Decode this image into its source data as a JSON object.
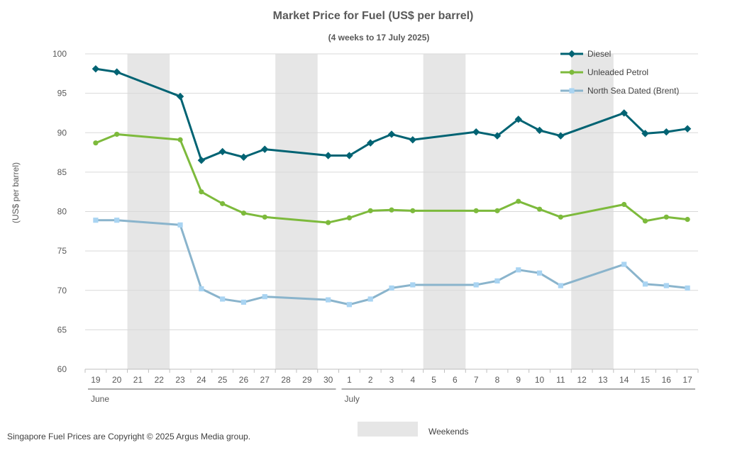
{
  "chart_data": {
    "type": "line",
    "title": "Market Price for Fuel (US$ per barrel)",
    "subtitle": "(4 weeks to 17 July 2025)",
    "ylabel": "(US$ per barrel)",
    "ylim": [
      60,
      100
    ],
    "yticks": [
      60,
      65,
      70,
      75,
      80,
      85,
      90,
      95,
      100
    ],
    "grid": true,
    "legend_position": "top-right",
    "categories": [
      "19",
      "20",
      "21",
      "22",
      "23",
      "24",
      "25",
      "26",
      "27",
      "28",
      "29",
      "30",
      "1",
      "2",
      "3",
      "4",
      "5",
      "6",
      "7",
      "8",
      "9",
      "10",
      "11",
      "12",
      "13",
      "14",
      "15",
      "16",
      "17"
    ],
    "month_groups": [
      {
        "label": "June",
        "from": 0,
        "to": 11
      },
      {
        "label": "July",
        "from": 12,
        "to": 28
      }
    ],
    "weekend_spans": [
      [
        2,
        3
      ],
      [
        9,
        10
      ],
      [
        16,
        17
      ],
      [
        23,
        24
      ]
    ],
    "series": [
      {
        "name": "Diesel",
        "color": "#006373",
        "marker": "diamond",
        "values": [
          98.1,
          97.7,
          null,
          null,
          94.6,
          86.5,
          87.6,
          86.9,
          87.9,
          null,
          null,
          87.1,
          87.1,
          88.7,
          89.8,
          89.1,
          null,
          null,
          90.1,
          89.6,
          91.7,
          90.3,
          89.6,
          null,
          null,
          92.5,
          89.9,
          90.1,
          90.5
        ]
      },
      {
        "name": "Unleaded Petrol",
        "color": "#7dba3c",
        "marker": "circle",
        "values": [
          88.7,
          89.8,
          null,
          null,
          89.1,
          82.5,
          81.0,
          79.8,
          79.3,
          null,
          null,
          78.6,
          79.2,
          80.1,
          80.2,
          80.1,
          null,
          null,
          80.1,
          80.1,
          81.3,
          80.3,
          79.3,
          null,
          null,
          80.9,
          78.8,
          79.3,
          79.0
        ]
      },
      {
        "name": "North Sea Dated (Brent)",
        "color": "#8ab4cc",
        "marker": "square",
        "marker_color": "#a9d4f2",
        "values": [
          78.9,
          78.9,
          null,
          null,
          78.3,
          70.2,
          68.9,
          68.5,
          69.2,
          null,
          null,
          68.8,
          68.2,
          68.9,
          70.3,
          70.7,
          null,
          null,
          70.7,
          71.2,
          72.6,
          72.2,
          70.6,
          null,
          null,
          73.3,
          70.8,
          70.6,
          70.3
        ]
      }
    ],
    "weekends_legend_label": "Weekends",
    "weekend_color": "#e6e6e6",
    "copyright": "Singapore Fuel Prices are Copyright © 2025 Argus Media group."
  }
}
